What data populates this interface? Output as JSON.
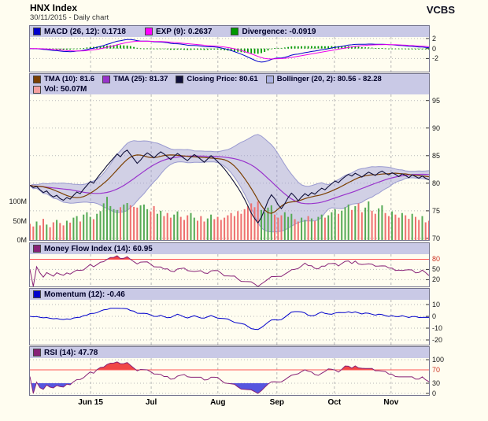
{
  "header": {
    "title": "HNX Index",
    "subtitle": "30/11/2015 - Daily chart",
    "brand": "VCBS"
  },
  "legends": {
    "macd": [
      {
        "label": "MACD (26, 12): 0.1718",
        "color": "#0000cc"
      },
      {
        "label": "EXP (9): 0.2637",
        "color": "#ff00ff"
      },
      {
        "label": "Divergence: -0.0919",
        "color": "#009900"
      }
    ],
    "price_row1": [
      {
        "label": "TMA (10): 81.6",
        "color": "#7b3f00"
      },
      {
        "label": "TMA (25): 81.37",
        "color": "#9933cc"
      },
      {
        "label": "Closing Price: 80.61",
        "color": "#10103a"
      },
      {
        "label": "Bollinger (20, 2): 80.56 - 82.28",
        "color": "#aab0e0"
      }
    ],
    "price_row2": [
      {
        "label": "Vol: 50.07M",
        "color": "#f4a0a0"
      }
    ],
    "mfi": [
      {
        "label": "Money Flow Index (14): 60.95",
        "color": "#882277"
      }
    ],
    "momentum": [
      {
        "label": "Momentum (12): -0.46",
        "color": "#0000cc"
      }
    ],
    "rsi": [
      {
        "label": "RSI (14): 47.78",
        "color": "#882277"
      }
    ]
  },
  "chart_data": {
    "type": "line",
    "subtype": "multi-panel-technical-stock-chart",
    "title": "HNX Index",
    "date": "30/11/2015",
    "x_axis": {
      "labels": [
        "Jun 15",
        "Jul",
        "Aug",
        "Sep",
        "Oct",
        "Nov"
      ],
      "fractions": [
        0.152,
        0.304,
        0.471,
        0.619,
        0.763,
        0.905
      ]
    },
    "close": [
      79.6,
      79.2,
      79.4,
      78.8,
      78.3,
      78.6,
      77.9,
      77.5,
      77.8,
      77.2,
      76.9,
      77.4,
      77.1,
      77.8,
      78.4,
      78.1,
      78.9,
      79.6,
      80.3,
      80.0,
      80.9,
      81.7,
      82.4,
      83.2,
      83.9,
      84.6,
      85.3,
      84.8,
      85.6,
      86.0,
      85.2,
      84.4,
      83.6,
      84.2,
      85.0,
      85.5,
      85.1,
      84.6,
      85.2,
      85.7,
      85.3,
      84.8,
      84.3,
      84.9,
      85.4,
      85.0,
      84.5,
      84.1,
      84.7,
      85.2,
      84.8,
      84.3,
      83.8,
      84.4,
      85.0,
      84.5,
      83.9,
      83.3,
      82.6,
      81.8,
      81.0,
      80.1,
      79.2,
      78.2,
      77.1,
      75.9,
      74.6,
      73.6,
      72.8,
      73.8,
      75.2,
      76.8,
      77.9,
      77.2,
      76.1,
      75.4,
      76.3,
      77.4,
      78.2,
      77.6,
      76.8,
      77.5,
      78.1,
      77.7,
      78.3,
      78.0,
      78.6,
      79.1,
      78.8,
      79.4,
      79.9,
      80.4,
      80.1,
      80.7,
      81.2,
      81.6,
      81.3,
      81.8,
      81.5,
      81.1,
      81.6,
      82.0,
      81.7,
      81.4,
      81.9,
      82.2,
      81.8,
      81.5,
      81.9,
      81.6,
      81.2,
      81.7,
      81.4,
      81.0,
      81.5,
      81.2,
      80.9,
      81.3,
      80.9,
      80.6
    ],
    "volume_millions": [
      42,
      35,
      48,
      38,
      55,
      40,
      33,
      46,
      52,
      44,
      38,
      50,
      45,
      58,
      62,
      48,
      66,
      72,
      60,
      54,
      68,
      75,
      95,
      112,
      88,
      80,
      78,
      85,
      92,
      96,
      90,
      86,
      84,
      90,
      92,
      80,
      74,
      88,
      68,
      76,
      62,
      70,
      58,
      66,
      74,
      60,
      52,
      64,
      70,
      58,
      50,
      62,
      48,
      56,
      66,
      54,
      60,
      52,
      58,
      64,
      70,
      62,
      75,
      68,
      80,
      88,
      95,
      85,
      100,
      78,
      72,
      84,
      90,
      66,
      58,
      64,
      72,
      60,
      68,
      54,
      48,
      58,
      52,
      62,
      56,
      50,
      60,
      66,
      58,
      64,
      72,
      80,
      68,
      76,
      85,
      92,
      78,
      88,
      95,
      72,
      84,
      100,
      76,
      68,
      82,
      90,
      70,
      62,
      74,
      66,
      58,
      70,
      64,
      55,
      68,
      60,
      52,
      62,
      46,
      50
    ],
    "volume_axis": {
      "ticks": [
        "100M",
        "50M",
        "0M"
      ],
      "tick_values": [
        100,
        50,
        0
      ]
    },
    "panels": [
      {
        "id": "macd",
        "label": "MACD",
        "ylim": [
          -4.6,
          2.3
        ],
        "yticks": [
          2,
          0,
          -2
        ],
        "series": [
          "MACD(26,12)",
          "EXP(9) signal",
          "Divergence histogram"
        ],
        "last_values": {
          "macd": 0.1718,
          "exp": 0.2637,
          "divergence": -0.0919
        }
      },
      {
        "id": "price",
        "label": "Price",
        "ylim": [
          69.7,
          96.1
        ],
        "yticks": [
          95,
          90,
          85,
          80,
          75,
          70
        ],
        "series": [
          "Closing Price",
          "TMA(10)",
          "TMA(25)",
          "Bollinger(20,2) band",
          "Volume bars"
        ],
        "last_values": {
          "tma10": 81.6,
          "tma25": 81.37,
          "close": 80.61,
          "bollinger_low": 80.56,
          "bollinger_high": 82.28,
          "volume_label": "50.07M"
        }
      },
      {
        "id": "mfi",
        "label": "Money Flow Index (14)",
        "ylim": [
          0,
          95
        ],
        "yticks": [
          80,
          50,
          20
        ],
        "threshold_upper": 80,
        "last_value": 60.95
      },
      {
        "id": "momentum",
        "label": "Momentum (12)",
        "ylim": [
          -24,
          14
        ],
        "yticks": [
          10,
          0,
          -10,
          -20
        ],
        "last_value": -0.46
      },
      {
        "id": "rsi",
        "label": "RSI (14)",
        "ylim": [
          -5,
          105
        ],
        "yticks": [
          100,
          70,
          30,
          0
        ],
        "threshold_upper": 70,
        "threshold_lower": 30,
        "last_value": 47.78
      }
    ],
    "colors": {
      "background": "#fffdf0",
      "legend_bg": "#c9c9e6",
      "macd_line": "#0000cc",
      "exp_line": "#ee00ee",
      "divergence_bar": "#009900",
      "close_line": "#10103a",
      "tma10_line": "#7b3f00",
      "tma25_line": "#9933cc",
      "bollinger_fill": "#9898d8",
      "bollinger_edge": "#9a9ad0",
      "vol_up": "#55aa55",
      "vol_down": "#ee7070",
      "mfi_line": "#882277",
      "momentum_line": "#0000cc",
      "rsi_line": "#882277",
      "threshold_line": "#ff5555",
      "fill_high": "#ee3333",
      "fill_low": "#4444dd",
      "grid": "#b8b8b8"
    }
  }
}
